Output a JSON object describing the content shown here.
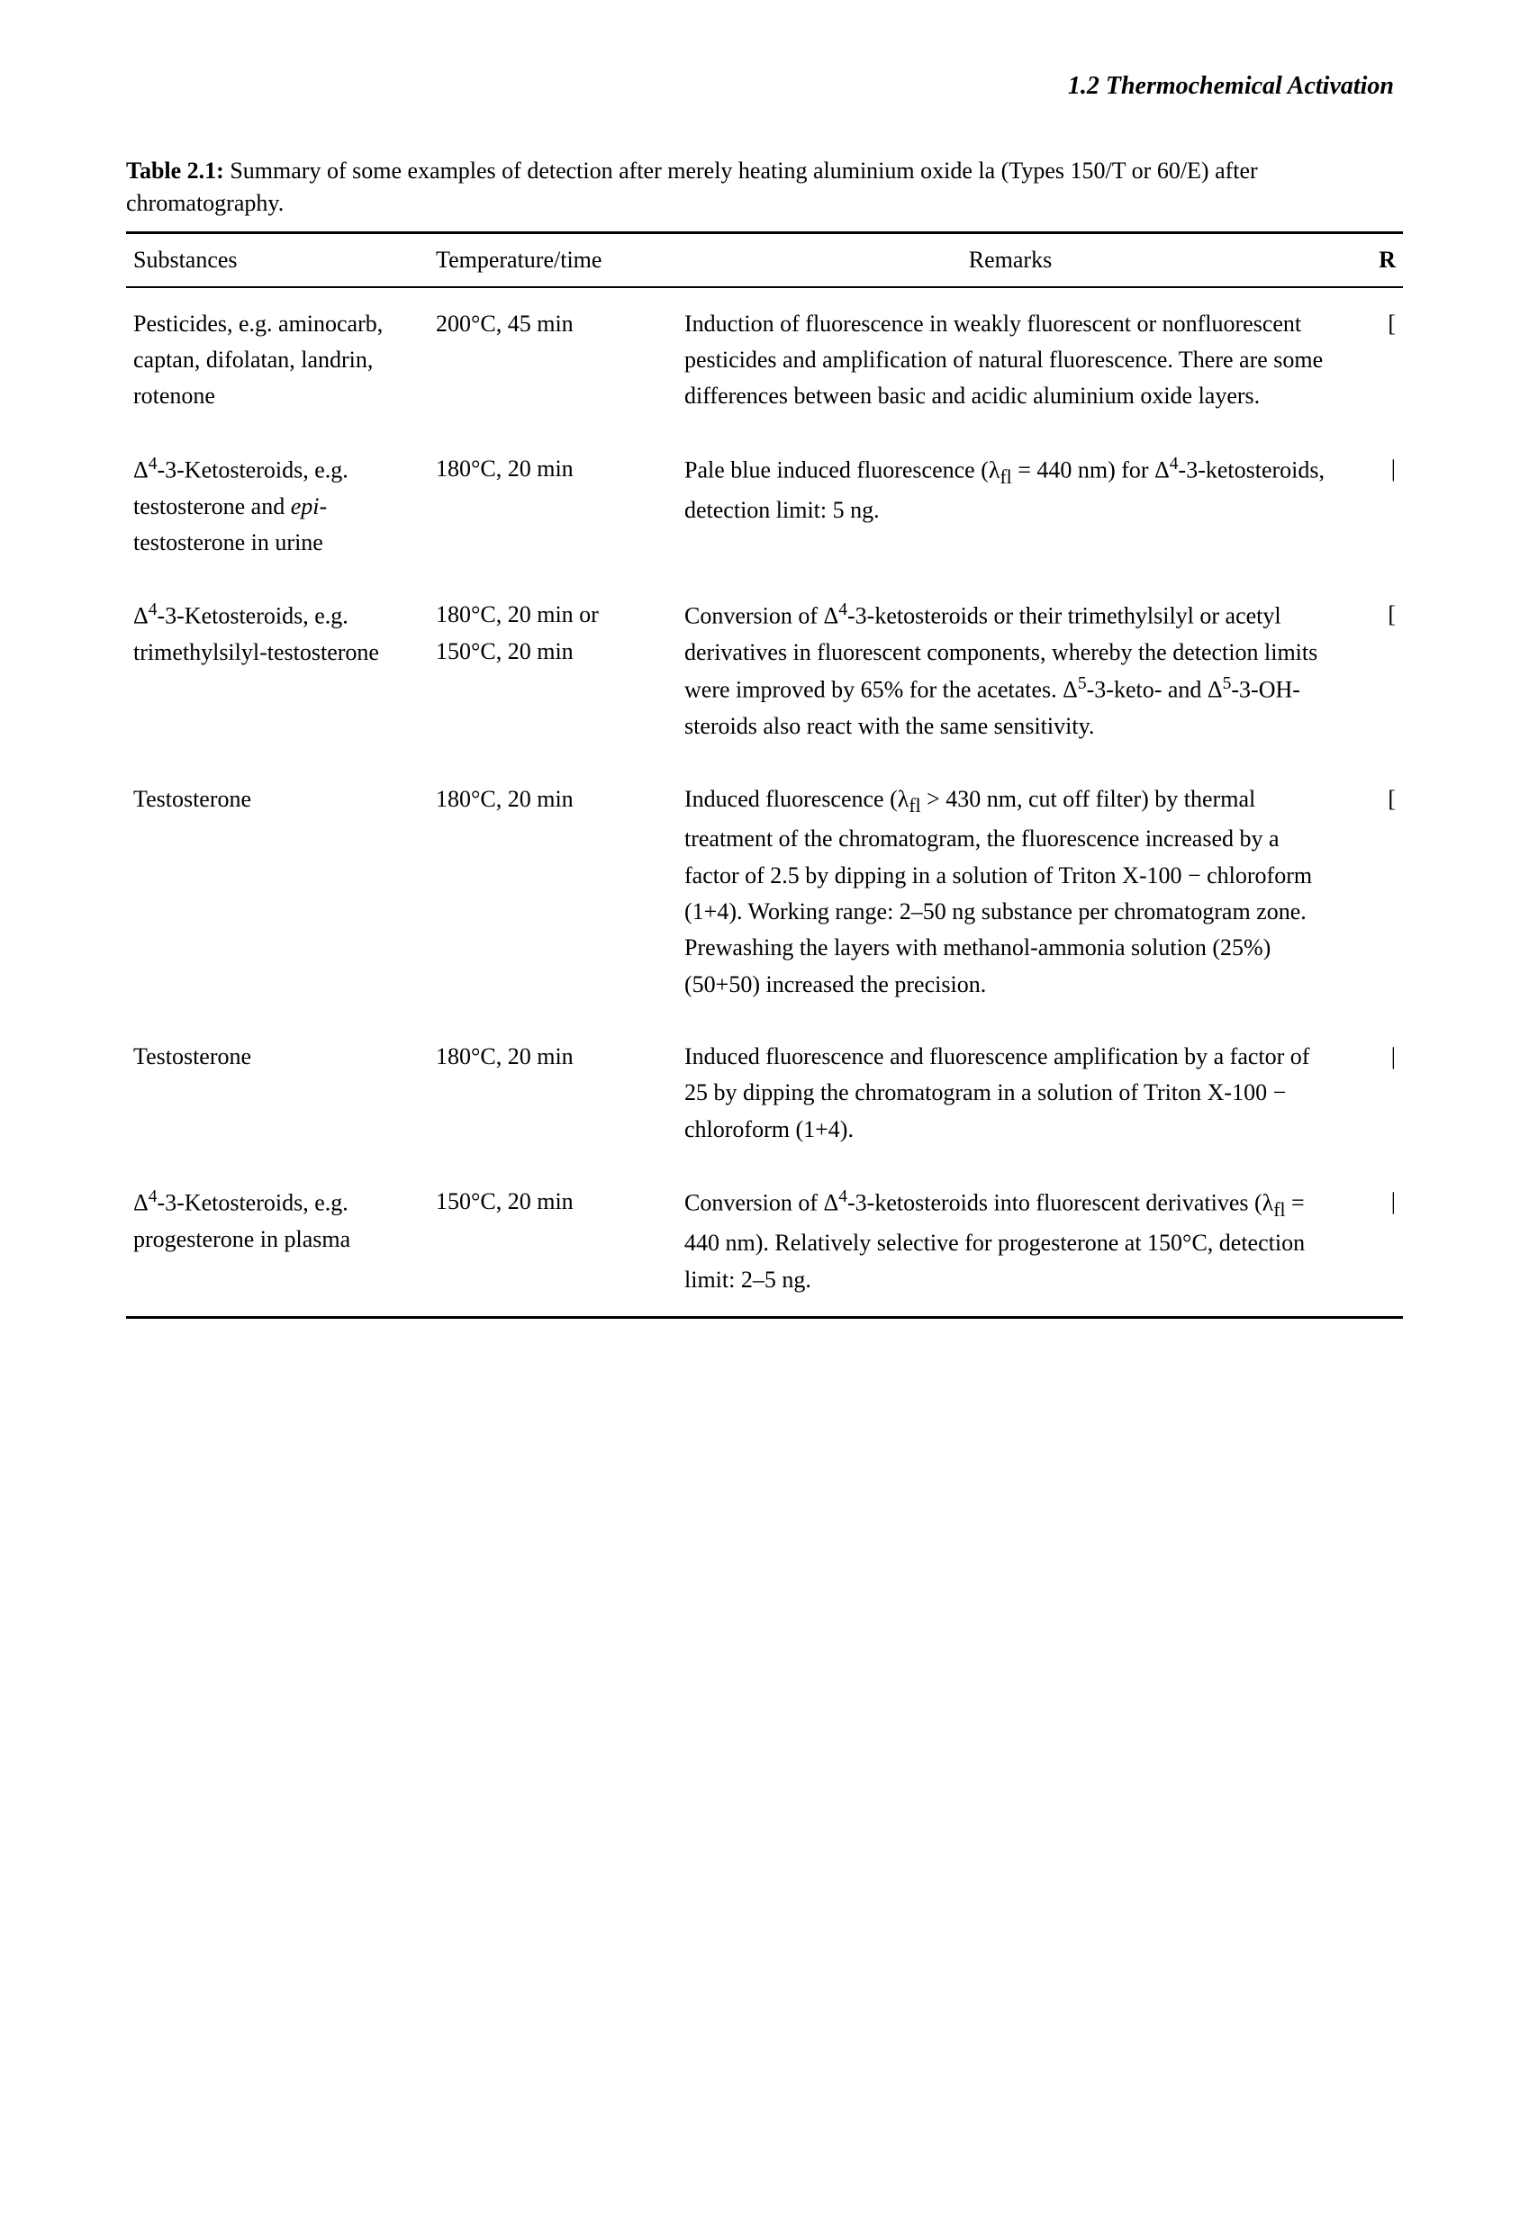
{
  "header": {
    "section_title": "1.2 Thermochemical Activation"
  },
  "caption": {
    "label": "Table 2.1:",
    "text": "Summary of some examples of detection after merely heating aluminium oxide la (Types 150/T or 60/E) after chromatography."
  },
  "columns": {
    "substances": "Substances",
    "temperature": "Temperature/time",
    "remarks": "Remarks",
    "r": "R"
  },
  "rows": [
    {
      "substances": "Pesticides, e.g. aminocarb, captan, difolatan, landrin, rotenone",
      "temperature": "200°C, 45 min",
      "remarks": "Induction of fluorescence in weakly fluorescent or nonfluorescent pesticides and amplification of natural fluorescence. There are some differences between basic and acidic aluminium oxide layers.",
      "r": "["
    },
    {
      "substances_html": "Δ<sup>4</sup>-3-Ketosteroids, e.g. testosterone and <span class=\"italic\">epi</span>-testosterone in urine",
      "temperature": "180°C, 20 min",
      "remarks_html": "Pale blue induced fluorescence (λ<sub>fl</sub> = 440 nm) for Δ<sup>4</sup>-3-ketosteroids, detection limit: 5 ng.",
      "r": "|"
    },
    {
      "substances_html": "Δ<sup>4</sup>-3-Ketosteroids, e.g. trimethylsilyl-testosterone",
      "temperature": "180°C, 20 min or 150°C, 20 min",
      "remarks_html": "Conversion of Δ<sup>4</sup>-3-ketosteroids or their trimethylsilyl or acetyl derivatives in fluorescent components, whereby the detection limits were improved by 65% for the acetates. Δ<sup>5</sup>-3-keto- and Δ<sup>5</sup>-3-OH-steroids also react with the same sensitivity.",
      "r": "["
    },
    {
      "substances": "Testosterone",
      "temperature": "180°C, 20 min",
      "remarks_html": "Induced fluorescence (λ<sub>fl</sub> > 430 nm, cut off filter) by thermal treatment of the chromatogram, the fluorescence increased by a factor of 2.5 by dipping in a solution of Triton X-100 − chloroform (1+4). Working range: 2–50 ng substance per chromatogram zone. Prewashing the layers with methanol-ammonia solution (25%) (50+50) increased the precision.",
      "r": "["
    },
    {
      "substances": "Testosterone",
      "temperature": "180°C, 20 min",
      "remarks": "Induced fluorescence and fluorescence amplification by a factor of 25 by dipping the chromatogram in a solution of Triton X-100 − chloroform (1+4).",
      "r": "|"
    },
    {
      "substances_html": "Δ<sup>4</sup>-3-Ketosteroids, e.g. progesterone in plasma",
      "temperature": "150°C, 20 min",
      "remarks_html": "Conversion of Δ<sup>4</sup>-3-ketosteroids into fluorescent derivatives (λ<sub>fl</sub> = 440 nm). Relatively selective for progesterone at 150°C, detection limit: 2–5 ng.",
      "r": "|"
    }
  ]
}
